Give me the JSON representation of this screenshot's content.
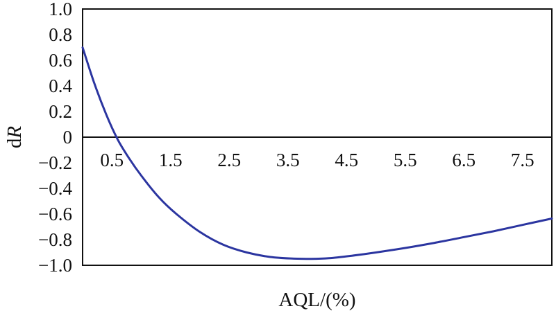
{
  "chart_data": {
    "type": "line",
    "title": "",
    "xlabel": "AQL/(%)",
    "ylabel_prefix": "d",
    "ylabel_var": "R",
    "xlim": [
      0.0,
      8.0
    ],
    "ylim": [
      -1.0,
      1.0
    ],
    "x_ticks": [
      0.5,
      1.5,
      2.5,
      3.5,
      4.5,
      5.5,
      6.5,
      7.5
    ],
    "x_tick_labels": [
      "0.5",
      "1.5",
      "2.5",
      "3.5",
      "4.5",
      "5.5",
      "6.5",
      "7.5"
    ],
    "y_ticks": [
      1.0,
      0.8,
      0.6,
      0.4,
      0.2,
      0,
      -0.2,
      -0.4,
      -0.6,
      -0.8,
      -1.0
    ],
    "y_tick_labels": [
      "1.0",
      "0.8",
      "0.6",
      "0.4",
      "0.2",
      "0",
      "−0.2",
      "−0.4",
      "−0.6",
      "−0.8",
      "−1.0"
    ],
    "grid": false,
    "legend": "none",
    "line_color": "#2b35a0",
    "series": [
      {
        "x": [
          0.0,
          0.2,
          0.4,
          0.6,
          0.8,
          1.0,
          1.3,
          1.6,
          2.0,
          2.4,
          2.8,
          3.2,
          3.6,
          3.9,
          4.2,
          4.6,
          5.0,
          5.5,
          6.0,
          6.5,
          7.0,
          7.5,
          8.0
        ],
        "values": [
          0.7,
          0.42,
          0.18,
          -0.02,
          -0.17,
          -0.3,
          -0.47,
          -0.6,
          -0.74,
          -0.84,
          -0.9,
          -0.935,
          -0.948,
          -0.95,
          -0.945,
          -0.925,
          -0.9,
          -0.865,
          -0.825,
          -0.78,
          -0.735,
          -0.685,
          -0.635
        ]
      }
    ]
  }
}
